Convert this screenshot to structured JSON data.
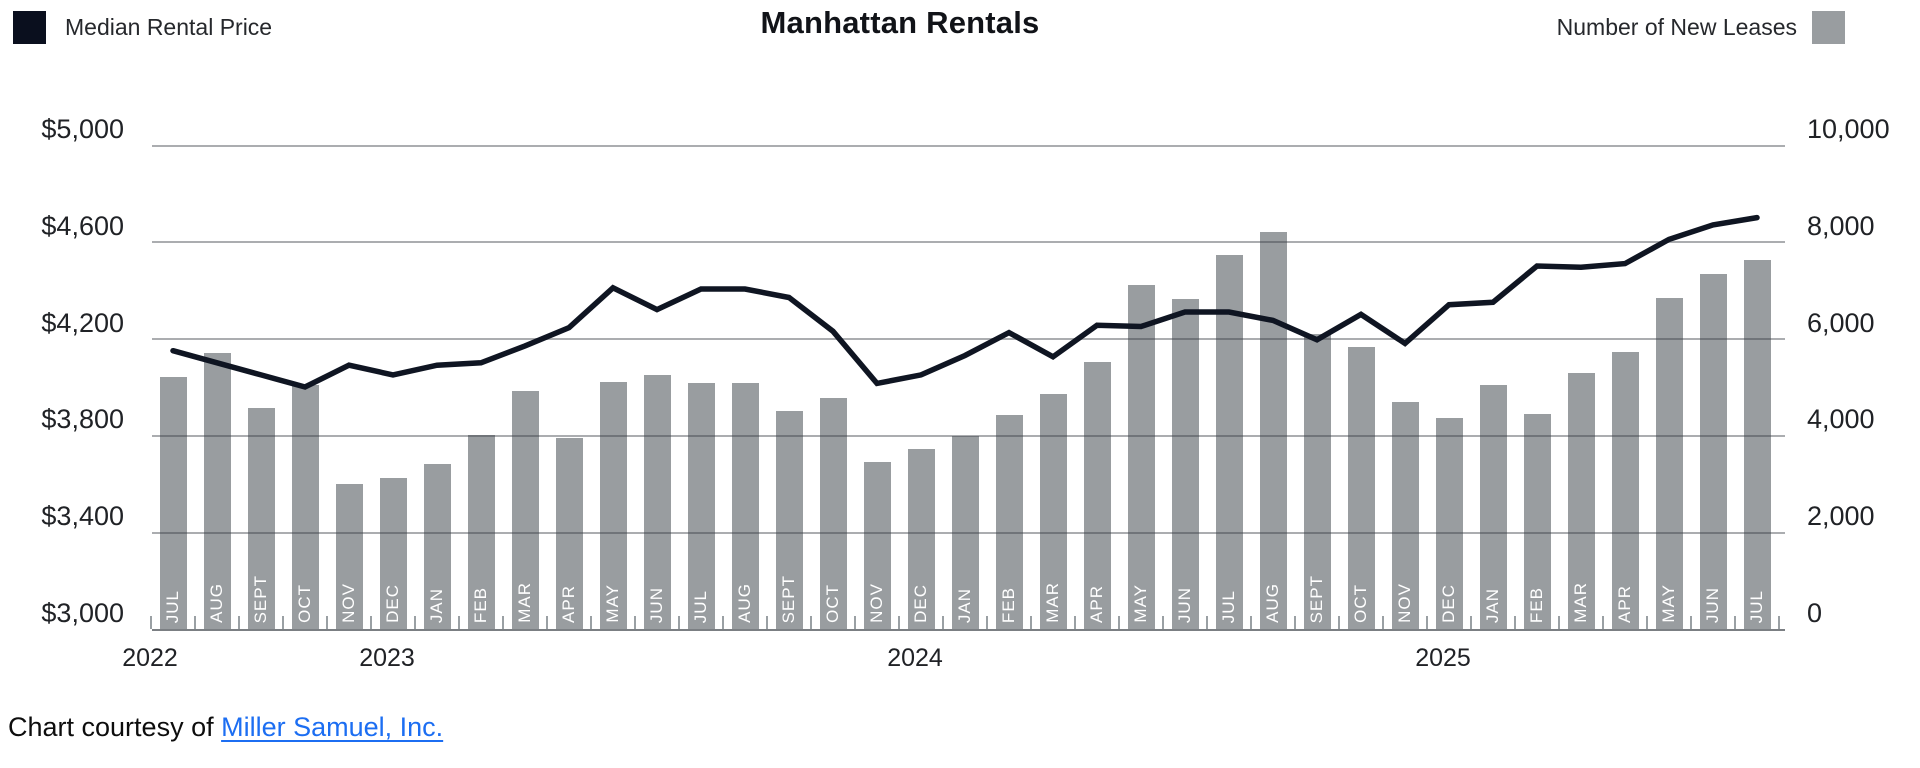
{
  "header": {
    "title": "Manhattan Rentals",
    "legend_left": {
      "label": "Median Rental Price",
      "color": "#0a0f1e"
    },
    "legend_right": {
      "label": "Number of New Leases",
      "color": "#999da0"
    }
  },
  "chart_data": {
    "type": "bar+line combo",
    "title": "Manhattan Rentals",
    "categories": [
      "JUL",
      "AUG",
      "SEPT",
      "OCT",
      "NOV",
      "DEC",
      "JAN",
      "FEB",
      "MAR",
      "APR",
      "MAY",
      "JUN",
      "JUL",
      "AUG",
      "SEPT",
      "OCT",
      "NOV",
      "DEC",
      "JAN",
      "FEB",
      "MAR",
      "APR",
      "MAY",
      "JUN",
      "JUL",
      "AUG",
      "SEPT",
      "OCT",
      "NOV",
      "DEC",
      "JAN",
      "FEB",
      "MAR",
      "APR",
      "MAY",
      "JUN",
      "JUL"
    ],
    "year_labels": [
      {
        "label": "2022",
        "anchor_index": 0
      },
      {
        "label": "2023",
        "anchor_index": 5
      },
      {
        "label": "2024",
        "anchor_index": 17
      },
      {
        "label": "2025",
        "anchor_index": 29
      }
    ],
    "series": [
      {
        "name": "Median Rental Price",
        "type": "line",
        "axis": "left",
        "color": "#0f1522",
        "values": [
          4150,
          4100,
          4050,
          4000,
          4090,
          4050,
          4090,
          4100,
          4170,
          4245,
          4410,
          4320,
          4405,
          4405,
          4370,
          4230,
          4015,
          4050,
          4130,
          4225,
          4125,
          4255,
          4250,
          4310,
          4310,
          4275,
          4195,
          4300,
          4180,
          4340,
          4350,
          4500,
          4495,
          4510,
          4610,
          4670,
          4700
        ]
      },
      {
        "name": "Number of New Leases",
        "type": "bar",
        "axis": "right",
        "color": "#999da0",
        "values": [
          5200,
          5700,
          4570,
          5040,
          3000,
          3130,
          3400,
          4000,
          4920,
          3950,
          5100,
          5250,
          5080,
          5080,
          4500,
          4770,
          3450,
          3720,
          3990,
          4420,
          4860,
          5520,
          7100,
          6820,
          7730,
          8200,
          6100,
          5830,
          4700,
          4360,
          5050,
          4440,
          5290,
          5720,
          6840,
          7330,
          7620
        ]
      }
    ],
    "left_axis": {
      "min": 3000,
      "max": 5000,
      "tick_labels": [
        "$5,000",
        "$4,600",
        "$4,200",
        "$3,800",
        "$3,400",
        "$3,000"
      ]
    },
    "right_axis": {
      "min": 0,
      "max": 10000,
      "tick_labels": [
        "10,000",
        "8,000",
        "6,000",
        "4,000",
        "2,000",
        "0"
      ]
    },
    "grid": "horizontal lines at each tick, drawn over bars"
  },
  "footer": {
    "text": "Chart courtesy of ",
    "link": "Miller Samuel, Inc."
  }
}
